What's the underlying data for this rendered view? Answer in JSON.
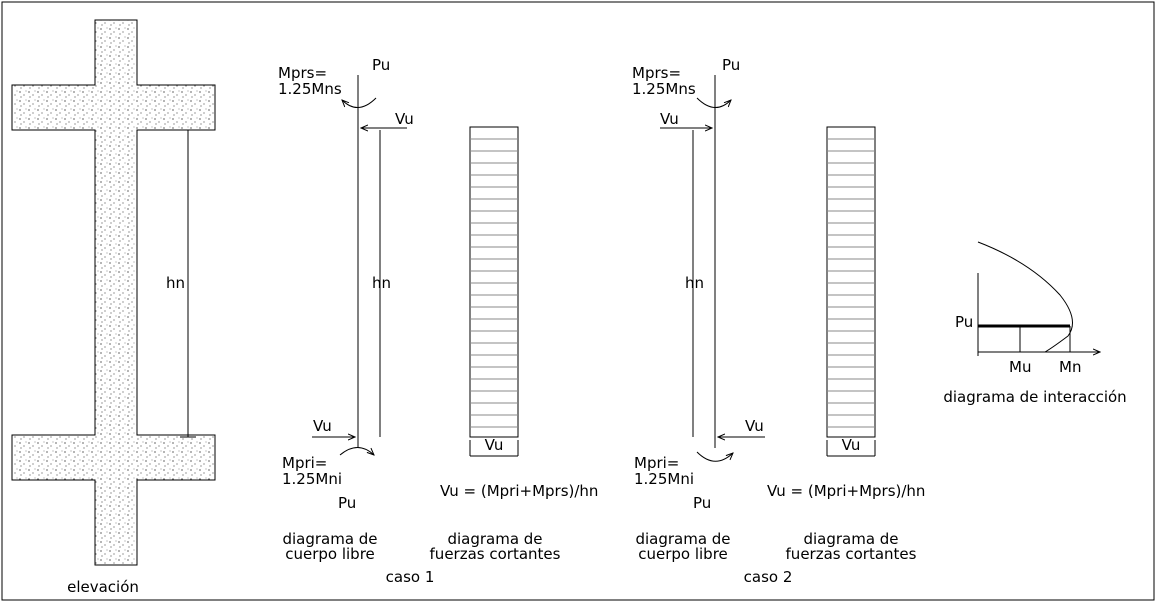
{
  "elevation": {
    "label": "elevación",
    "height": "hn"
  },
  "cases": [
    {
      "top_load": "Pu",
      "top_moment": [
        "Mprs=",
        "1.25Mns"
      ],
      "top_shear": "Vu",
      "height": "hn",
      "bottom_shear": "Vu",
      "bottom_moment": [
        "Mpri=",
        "1.25Mni"
      ],
      "bottom_load": "Pu",
      "shear_label": "Vu",
      "formula": "Vu = (Mpri+Mprs)/hn",
      "free_body_caption": [
        "diagrama de",
        "cuerpo libre"
      ],
      "shear_caption": [
        "diagrama de",
        "fuerzas cortantes"
      ],
      "title": "caso 1"
    },
    {
      "top_load": "Pu",
      "top_moment": [
        "Mprs=",
        "1.25Mns"
      ],
      "top_shear": "Vu",
      "height": "hn",
      "bottom_shear": "Vu",
      "bottom_moment": [
        "Mpri=",
        "1.25Mni"
      ],
      "bottom_load": "Pu",
      "shear_label": "Vu",
      "formula": "Vu = (Mpri+Mprs)/hn",
      "free_body_caption": [
        "diagrama de",
        "cuerpo libre"
      ],
      "shear_caption": [
        "diagrama de",
        "fuerzas cortantes"
      ],
      "title": "caso 2"
    }
  ],
  "interaction": {
    "axial": "Pu",
    "moment_u": "Mu",
    "moment_n": "Mn",
    "caption": "diagrama de interacción"
  }
}
